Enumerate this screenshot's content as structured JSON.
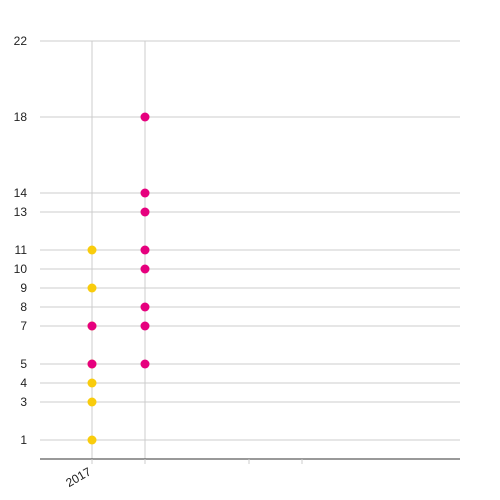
{
  "chart_data": {
    "type": "scatter",
    "title": "",
    "xlabel": "",
    "ylabel": "",
    "grid": true,
    "legend": "none",
    "y_ticks": [
      1,
      3,
      4,
      5,
      7,
      8,
      9,
      10,
      11,
      13,
      14,
      18,
      22
    ],
    "x_tick_labels": [
      "2017"
    ],
    "series": [
      {
        "color": "#F9CC0C",
        "points": [
          {
            "col": 0,
            "y": 1
          },
          {
            "col": 0,
            "y": 3
          },
          {
            "col": 0,
            "y": 4
          },
          {
            "col": 0,
            "y": 5
          },
          {
            "col": 0,
            "y": 7
          },
          {
            "col": 0,
            "y": 9
          },
          {
            "col": 0,
            "y": 11
          }
        ]
      },
      {
        "color": "#E6007E",
        "points": [
          {
            "col": 0,
            "y": 5
          },
          {
            "col": 0,
            "y": 7
          },
          {
            "col": 1,
            "y": 5
          },
          {
            "col": 1,
            "y": 7
          },
          {
            "col": 1,
            "y": 8
          },
          {
            "col": 1,
            "y": 10
          },
          {
            "col": 1,
            "y": 11
          },
          {
            "col": 1,
            "y": 13
          },
          {
            "col": 1,
            "y": 14
          },
          {
            "col": 1,
            "y": 18
          }
        ]
      }
    ]
  }
}
